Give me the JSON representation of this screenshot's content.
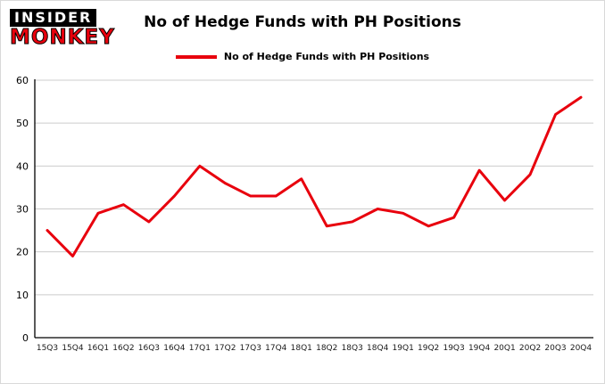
{
  "logo": {
    "line1": "INSIDER",
    "line2": "MONKEY"
  },
  "header": {
    "title": "No of Hedge Funds with PH Positions"
  },
  "legend": {
    "label": "No of Hedge Funds with PH Positions",
    "color": "#e8000d"
  },
  "chart_data": {
    "type": "line",
    "title": "No of Hedge Funds with PH Positions",
    "categories": [
      "15Q3",
      "15Q4",
      "16Q1",
      "16Q2",
      "16Q3",
      "16Q4",
      "17Q1",
      "17Q2",
      "17Q3",
      "17Q4",
      "18Q1",
      "18Q2",
      "18Q3",
      "18Q4",
      "19Q1",
      "19Q2",
      "19Q3",
      "19Q4",
      "20Q1",
      "20Q2",
      "20Q3",
      "20Q4"
    ],
    "series": [
      {
        "name": "No of Hedge Funds with PH Positions",
        "color": "#e8000d",
        "values": [
          25,
          19,
          29,
          31,
          27,
          33,
          40,
          36,
          33,
          33,
          37,
          26,
          27,
          30,
          29,
          26,
          28,
          39,
          32,
          38,
          52,
          56
        ]
      }
    ],
    "xlabel": "",
    "ylabel": "",
    "ylim": [
      0,
      60
    ],
    "yticks": [
      0,
      10,
      20,
      30,
      40,
      50,
      60
    ],
    "grid": true,
    "legend_position": "top"
  }
}
